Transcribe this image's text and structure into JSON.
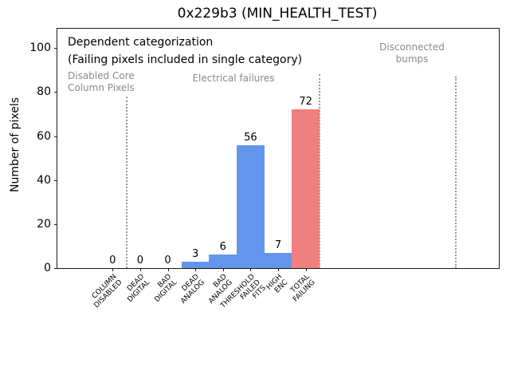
{
  "chart_data": {
    "type": "bar",
    "title": "0x229b3 (MIN_HEALTH_TEST)",
    "ylabel": "Number of pixels",
    "xlabel": "",
    "categories": [
      "COLUMN\nDISABLED",
      "DEAD\nDIGITAL",
      "BAD\nDIGITAL",
      "DEAD\nANALOG",
      "BAD\nANALOG",
      "THRESHOLD\nFAILED\nFITS",
      "HIGH\nENC",
      "TOTAL\nFAILING"
    ],
    "values": [
      0,
      0,
      0,
      3,
      6,
      56,
      7,
      72
    ],
    "value_labels": [
      "0",
      "0",
      "0",
      "3",
      "6",
      "56",
      "7",
      "72"
    ],
    "bar_colors": [
      "#6495ed",
      "#6495ed",
      "#6495ed",
      "#6495ed",
      "#6495ed",
      "#6495ed",
      "#6495ed",
      "#f08080"
    ],
    "bar_width": 1.0,
    "yticks": [
      0,
      20,
      40,
      60,
      80,
      100
    ],
    "ylim": [
      0,
      108.8
    ],
    "xlim": [
      -2,
      14
    ],
    "grid": false,
    "legend": null,
    "separator_color": "#999999",
    "separators": [
      {
        "x": 0.5,
        "y_top": 78
      },
      {
        "x": 7.5,
        "y_top": 88
      },
      {
        "x": 12.45,
        "y_top": 87
      }
    ],
    "annotations": {
      "dependent_line1": "Dependent categorization",
      "dependent_line2": "(Failing pixels included in single category)",
      "disabled_core": "Disabled Core\nColumn Pixels",
      "electrical": "Electrical failures",
      "disconnected": "Disconnected\nbumps"
    },
    "accent_colors": {
      "bar_blue": "#6495ed",
      "bar_red": "#f08080",
      "annotation_gray": "#8a8a8a",
      "axis_black": "#1a1a1a"
    }
  }
}
